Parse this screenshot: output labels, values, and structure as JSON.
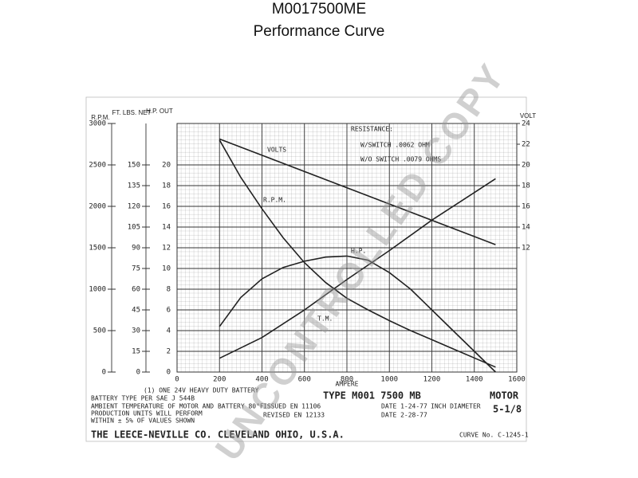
{
  "chart_data": {
    "type": "line",
    "title": "M0017500ME",
    "subtitle": "Performance Curve",
    "x_label": "AMPERE",
    "xlim": [
      0,
      1600
    ],
    "xticks": [
      0,
      200,
      400,
      600,
      800,
      1000,
      1200,
      1400,
      1600
    ],
    "y_label": "H.P. OUT",
    "ylim": [
      0,
      24
    ],
    "yticks": [
      0,
      2,
      4,
      6,
      8,
      10,
      12,
      14,
      16,
      18,
      20
    ],
    "y2_label": "VOLT",
    "y2lim": [
      0,
      24
    ],
    "y2ticks": [
      12,
      14,
      16,
      18,
      20,
      22,
      24
    ],
    "rpm_axis": {
      "label": "R.P.M.",
      "lim": [
        0,
        3000
      ],
      "ticks": [
        0,
        500,
        1000,
        1500,
        2000,
        2500,
        3000
      ]
    },
    "torque_axis": {
      "label": "FT. LBS. NET",
      "lim": [
        0,
        180
      ],
      "ticks": [
        0,
        15,
        30,
        45,
        60,
        75,
        90,
        105,
        120,
        135,
        150
      ]
    },
    "grid": true,
    "series": [
      {
        "name": "VOLTS",
        "axis": "y2",
        "color": "#222",
        "x": [
          200,
          1500
        ],
        "values": [
          22.5,
          12.3
        ]
      },
      {
        "name": "R.P.M.",
        "axis": "rpm",
        "color": "#222",
        "x": [
          200,
          300,
          400,
          500,
          600,
          700,
          800,
          900,
          1000,
          1100,
          1200,
          1300,
          1400,
          1500
        ],
        "values": [
          2800,
          2350,
          1970,
          1620,
          1320,
          1080,
          890,
          750,
          620,
          500,
          390,
          280,
          170,
          60
        ]
      },
      {
        "name": "H.P.",
        "axis": "y",
        "color": "#222",
        "x": [
          200,
          300,
          400,
          500,
          600,
          700,
          800,
          900,
          1000,
          1100,
          1200,
          1300,
          1400,
          1500
        ],
        "values": [
          4.4,
          7.2,
          9.0,
          10.1,
          10.7,
          11.1,
          11.2,
          10.8,
          9.6,
          8.0,
          6.0,
          4.0,
          2.0,
          0
        ]
      },
      {
        "name": "T.M.",
        "axis": "torque",
        "color": "#222",
        "x": [
          200,
          400,
          600,
          800,
          1000,
          1200,
          1400,
          1500
        ],
        "values": [
          10,
          25,
          45,
          67,
          88,
          110,
          130,
          140
        ]
      }
    ],
    "resistance": [
      "RESISTANCE:",
      "W/SWITCH .0062 OHM",
      "W/O SWITCH .0079 OHMS"
    ],
    "notes": [
      "(1) ONE 24V HEAVY DUTY BATTERY",
      "BATTERY TYPE PER SAE J 544B",
      "AMBIENT TEMPERATURE OF MOTOR AND BATTERY 80°F",
      "PRODUCTION UNITS WILL PERFORM",
      "WITHIN ± 5% OF VALUES SHOWN",
      "ISSUED EN 11106",
      "REVISED EN 12133",
      "DATE 1-24-77",
      "DATE 2-28-77",
      "INCH DIAMETER",
      "5-1/8",
      "TYPE M001 7500 MB",
      "MOTOR",
      "THE LEECE-NEVILLE CO. CLEVELAND OHIO, U.S.A.",
      "CURVE No. C-1245-1"
    ],
    "watermark": "UNCONTROLLED COPY"
  }
}
